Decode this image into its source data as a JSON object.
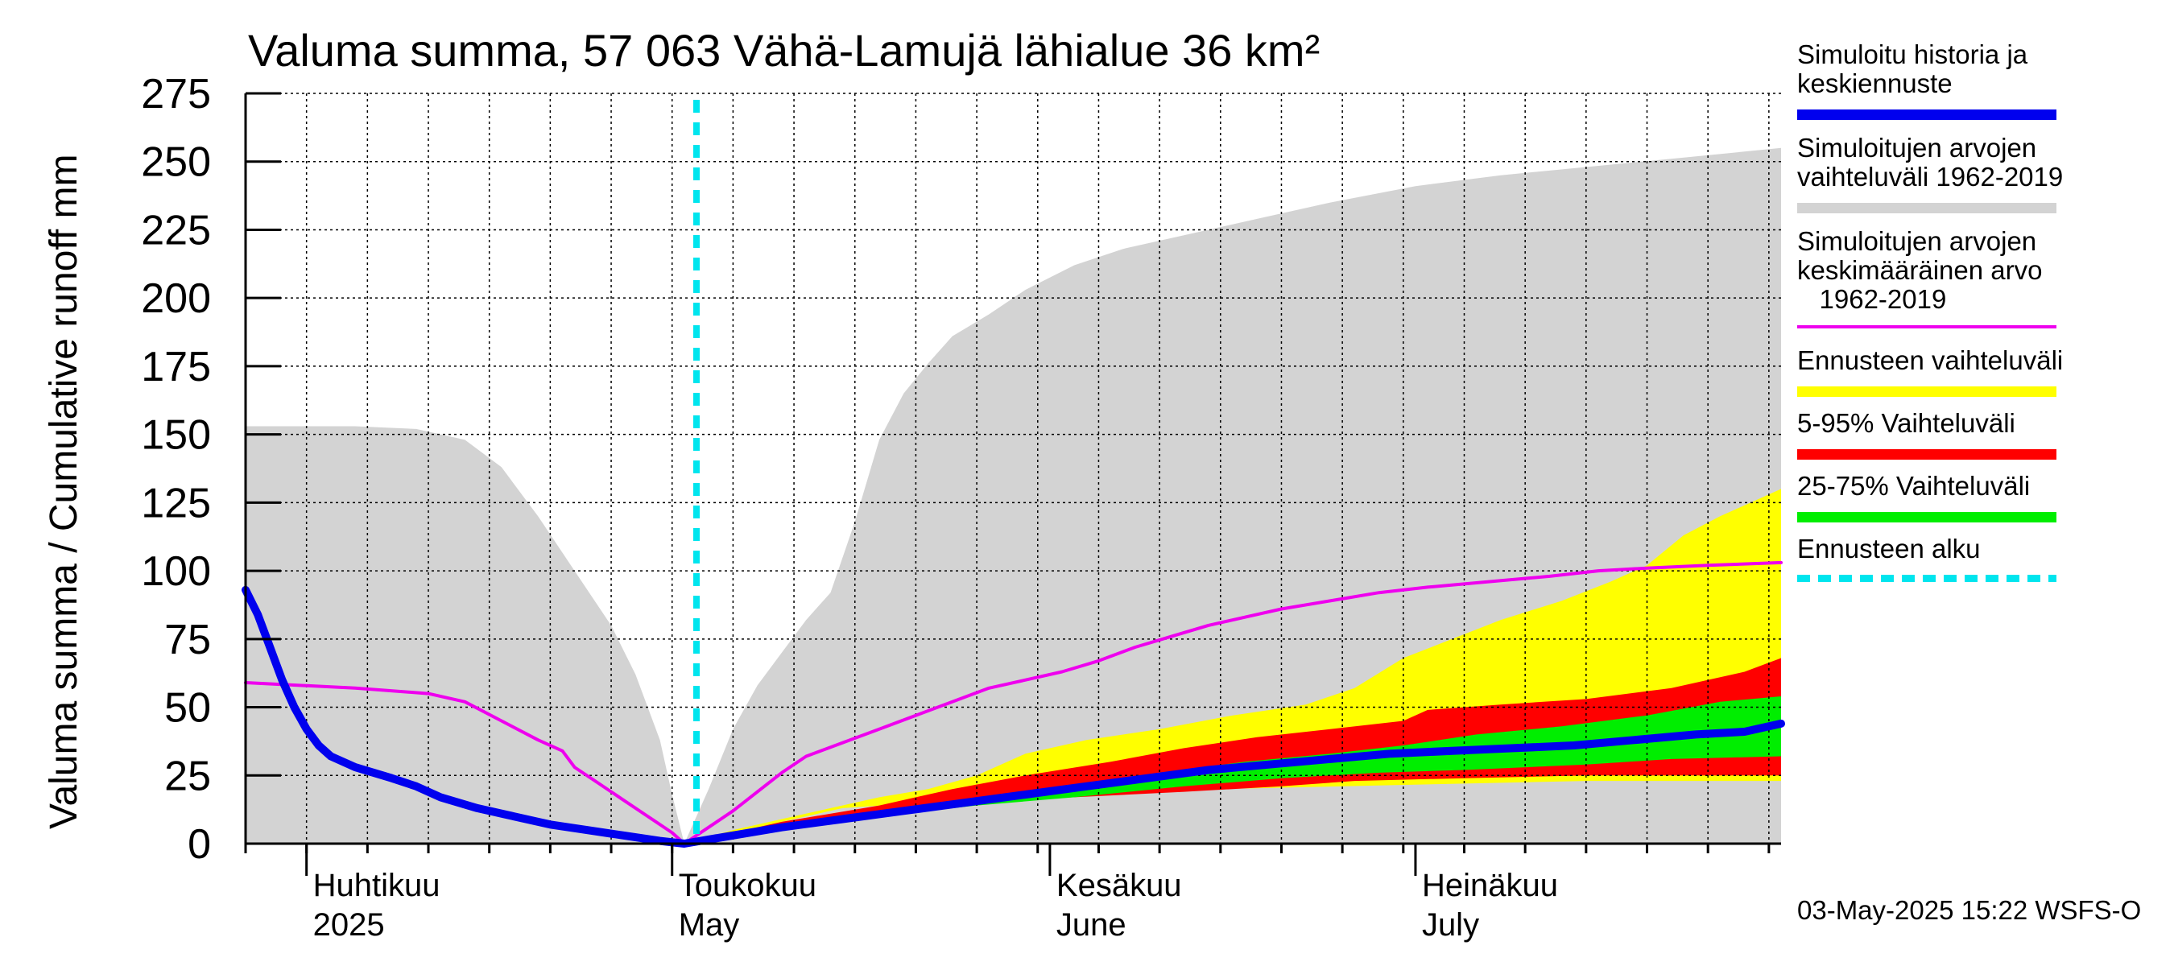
{
  "chart_data": {
    "type": "area",
    "title": "Valuma summa, 57 063 Vähä-Lamujä lähialue 36 km²",
    "ylabel": "Valuma summa / Cumulative runoff    mm",
    "ylim": [
      0,
      275
    ],
    "yticks": [
      0,
      25,
      50,
      75,
      100,
      125,
      150,
      175,
      200,
      225,
      250,
      275
    ],
    "grid": true,
    "legend_position": "right",
    "x_start": "2025-03-27",
    "x_end": "2025-07-31",
    "forecast_start": "2025-05-03",
    "x_tick_labels": [
      {
        "date": "2025-04-01",
        "line1": "Huhtikuu",
        "line2": "2025"
      },
      {
        "date": "2025-05-01",
        "line1": "Toukokuu",
        "line2": "May"
      },
      {
        "date": "2025-06-01",
        "line1": "Kesäkuu",
        "line2": "June"
      },
      {
        "date": "2025-07-01",
        "line1": "Heinäkuu",
        "line2": "July"
      }
    ],
    "series": [
      {
        "name": "Simuloitujen arvojen vaihteluväli 1962-2019",
        "kind": "band",
        "color": "#d3d3d3",
        "upper": [
          [
            "2025-03-27",
            153
          ],
          [
            "2025-04-05",
            153
          ],
          [
            "2025-04-10",
            152
          ],
          [
            "2025-04-14",
            148
          ],
          [
            "2025-04-17",
            138
          ],
          [
            "2025-04-20",
            120
          ],
          [
            "2025-04-23",
            100
          ],
          [
            "2025-04-26",
            80
          ],
          [
            "2025-04-28",
            62
          ],
          [
            "2025-04-30",
            38
          ],
          [
            "2025-05-01",
            18
          ],
          [
            "2025-05-02",
            0
          ],
          [
            "2025-05-04",
            20
          ],
          [
            "2025-05-06",
            42
          ],
          [
            "2025-05-08",
            58
          ],
          [
            "2025-05-10",
            70
          ],
          [
            "2025-05-12",
            82
          ],
          [
            "2025-05-14",
            92
          ],
          [
            "2025-05-16",
            118
          ],
          [
            "2025-05-18",
            148
          ],
          [
            "2025-05-20",
            165
          ],
          [
            "2025-05-22",
            176
          ],
          [
            "2025-05-24",
            186
          ],
          [
            "2025-05-27",
            194
          ],
          [
            "2025-05-30",
            203
          ],
          [
            "2025-06-03",
            212
          ],
          [
            "2025-06-07",
            218
          ],
          [
            "2025-06-12",
            223
          ],
          [
            "2025-06-18",
            229
          ],
          [
            "2025-06-24",
            235
          ],
          [
            "2025-07-01",
            241
          ],
          [
            "2025-07-08",
            245
          ],
          [
            "2025-07-15",
            248
          ],
          [
            "2025-07-22",
            251
          ],
          [
            "2025-07-31",
            255
          ]
        ],
        "lower": [
          [
            "2025-03-27",
            0
          ],
          [
            "2025-07-31",
            0
          ]
        ]
      },
      {
        "name": "Ennusteen vaihteluväli",
        "kind": "band",
        "color": "#ffff00",
        "upper": [
          [
            "2025-05-02",
            0
          ],
          [
            "2025-05-06",
            5
          ],
          [
            "2025-05-10",
            9
          ],
          [
            "2025-05-14",
            13
          ],
          [
            "2025-05-18",
            17
          ],
          [
            "2025-05-22",
            20
          ],
          [
            "2025-05-26",
            25
          ],
          [
            "2025-05-30",
            33
          ],
          [
            "2025-06-04",
            38
          ],
          [
            "2025-06-10",
            42
          ],
          [
            "2025-06-16",
            47
          ],
          [
            "2025-06-22",
            51
          ],
          [
            "2025-06-26",
            57
          ],
          [
            "2025-06-30",
            68
          ],
          [
            "2025-07-04",
            75
          ],
          [
            "2025-07-08",
            82
          ],
          [
            "2025-07-13",
            89
          ],
          [
            "2025-07-17",
            96
          ],
          [
            "2025-07-20",
            102
          ],
          [
            "2025-07-23",
            113
          ],
          [
            "2025-07-26",
            120
          ],
          [
            "2025-07-31",
            130
          ]
        ],
        "lower": [
          [
            "2025-05-02",
            0
          ],
          [
            "2025-05-15",
            13
          ],
          [
            "2025-05-25",
            16
          ],
          [
            "2025-06-05",
            18
          ],
          [
            "2025-06-15",
            20
          ],
          [
            "2025-06-25",
            21
          ],
          [
            "2025-07-05",
            22
          ],
          [
            "2025-07-15",
            23
          ],
          [
            "2025-07-31",
            23
          ]
        ]
      },
      {
        "name": "5-95% Vaihteluväli",
        "kind": "band",
        "color": "#ff0000",
        "upper": [
          [
            "2025-05-02",
            0
          ],
          [
            "2025-05-10",
            8
          ],
          [
            "2025-05-18",
            14
          ],
          [
            "2025-05-24",
            20
          ],
          [
            "2025-05-30",
            25
          ],
          [
            "2025-06-06",
            30
          ],
          [
            "2025-06-12",
            35
          ],
          [
            "2025-06-18",
            39
          ],
          [
            "2025-06-24",
            42
          ],
          [
            "2025-06-30",
            45
          ],
          [
            "2025-07-02",
            49
          ],
          [
            "2025-07-08",
            51
          ],
          [
            "2025-07-15",
            53
          ],
          [
            "2025-07-22",
            57
          ],
          [
            "2025-07-28",
            63
          ],
          [
            "2025-07-31",
            68
          ]
        ],
        "lower": [
          [
            "2025-05-02",
            0
          ],
          [
            "2025-05-10",
            7
          ],
          [
            "2025-05-18",
            12
          ],
          [
            "2025-05-26",
            15
          ],
          [
            "2025-06-03",
            17
          ],
          [
            "2025-06-12",
            19
          ],
          [
            "2025-06-20",
            21
          ],
          [
            "2025-06-26",
            23
          ],
          [
            "2025-07-05",
            24
          ],
          [
            "2025-07-15",
            25
          ],
          [
            "2025-07-31",
            25
          ]
        ]
      },
      {
        "name": "25-75% Vaihteluväli",
        "kind": "band",
        "color": "#00ee00",
        "upper": [
          [
            "2025-05-02",
            0
          ],
          [
            "2025-05-10",
            7
          ],
          [
            "2025-05-18",
            12
          ],
          [
            "2025-05-26",
            17
          ],
          [
            "2025-06-03",
            21
          ],
          [
            "2025-06-10",
            26
          ],
          [
            "2025-06-17",
            30
          ],
          [
            "2025-06-24",
            33
          ],
          [
            "2025-06-30",
            36
          ],
          [
            "2025-07-06",
            40
          ],
          [
            "2025-07-13",
            43
          ],
          [
            "2025-07-20",
            47
          ],
          [
            "2025-07-26",
            52
          ],
          [
            "2025-07-31",
            54
          ]
        ],
        "lower": [
          [
            "2025-05-02",
            0
          ],
          [
            "2025-05-10",
            6
          ],
          [
            "2025-05-18",
            10
          ],
          [
            "2025-05-26",
            14
          ],
          [
            "2025-06-03",
            17
          ],
          [
            "2025-06-12",
            21
          ],
          [
            "2025-06-20",
            24
          ],
          [
            "2025-06-28",
            26
          ],
          [
            "2025-07-05",
            27
          ],
          [
            "2025-07-15",
            29
          ],
          [
            "2025-07-22",
            31
          ],
          [
            "2025-07-31",
            32
          ]
        ]
      },
      {
        "name": "Simuloitujen arvojen keskimääräinen arvo 1962-2019",
        "kind": "line",
        "color": "#ee00ee",
        "points": [
          [
            "2025-03-27",
            59
          ],
          [
            "2025-04-05",
            57
          ],
          [
            "2025-04-11",
            55
          ],
          [
            "2025-04-14",
            52
          ],
          [
            "2025-04-17",
            45
          ],
          [
            "2025-04-20",
            38
          ],
          [
            "2025-04-22",
            34
          ],
          [
            "2025-04-23",
            28
          ],
          [
            "2025-04-25",
            22
          ],
          [
            "2025-04-27",
            16
          ],
          [
            "2025-04-29",
            10
          ],
          [
            "2025-05-01",
            4
          ],
          [
            "2025-05-02",
            0
          ],
          [
            "2025-05-04",
            6
          ],
          [
            "2025-05-06",
            12
          ],
          [
            "2025-05-08",
            19
          ],
          [
            "2025-05-10",
            26
          ],
          [
            "2025-05-12",
            32
          ],
          [
            "2025-05-15",
            37
          ],
          [
            "2025-05-18",
            42
          ],
          [
            "2025-05-21",
            47
          ],
          [
            "2025-05-24",
            52
          ],
          [
            "2025-05-27",
            57
          ],
          [
            "2025-05-30",
            60
          ],
          [
            "2025-06-02",
            63
          ],
          [
            "2025-06-05",
            67
          ],
          [
            "2025-06-08",
            72
          ],
          [
            "2025-06-11",
            76
          ],
          [
            "2025-06-14",
            80
          ],
          [
            "2025-06-17",
            83
          ],
          [
            "2025-06-20",
            86
          ],
          [
            "2025-06-24",
            89
          ],
          [
            "2025-06-28",
            92
          ],
          [
            "2025-07-02",
            94
          ],
          [
            "2025-07-07",
            96
          ],
          [
            "2025-07-12",
            98
          ],
          [
            "2025-07-16",
            100
          ],
          [
            "2025-07-20",
            101
          ],
          [
            "2025-07-25",
            102
          ],
          [
            "2025-07-31",
            103
          ]
        ]
      },
      {
        "name": "Simuloitu historia ja keskiennuste",
        "kind": "line",
        "color": "#0000ee",
        "points": [
          [
            "2025-03-27",
            93
          ],
          [
            "2025-03-28",
            84
          ],
          [
            "2025-03-29",
            72
          ],
          [
            "2025-03-30",
            60
          ],
          [
            "2025-03-31",
            50
          ],
          [
            "2025-04-01",
            42
          ],
          [
            "2025-04-02",
            36
          ],
          [
            "2025-04-03",
            32
          ],
          [
            "2025-04-05",
            28
          ],
          [
            "2025-04-08",
            24
          ],
          [
            "2025-04-10",
            21
          ],
          [
            "2025-04-12",
            17
          ],
          [
            "2025-04-15",
            13
          ],
          [
            "2025-04-18",
            10
          ],
          [
            "2025-04-21",
            7
          ],
          [
            "2025-04-24",
            5
          ],
          [
            "2025-04-27",
            3
          ],
          [
            "2025-04-30",
            1
          ],
          [
            "2025-05-02",
            0
          ],
          [
            "2025-05-06",
            3
          ],
          [
            "2025-05-10",
            6
          ],
          [
            "2025-05-15",
            9
          ],
          [
            "2025-05-20",
            12
          ],
          [
            "2025-05-25",
            15
          ],
          [
            "2025-05-30",
            18
          ],
          [
            "2025-06-04",
            21
          ],
          [
            "2025-06-09",
            24
          ],
          [
            "2025-06-14",
            27
          ],
          [
            "2025-06-19",
            29
          ],
          [
            "2025-06-24",
            31
          ],
          [
            "2025-06-29",
            33
          ],
          [
            "2025-07-04",
            34
          ],
          [
            "2025-07-09",
            35
          ],
          [
            "2025-07-14",
            36
          ],
          [
            "2025-07-19",
            38
          ],
          [
            "2025-07-24",
            40
          ],
          [
            "2025-07-28",
            41
          ],
          [
            "2025-07-31",
            44
          ]
        ]
      }
    ]
  },
  "legend": {
    "items": [
      {
        "key": "sim-history",
        "text": "Simuloitu historia ja\nkeskiennuste",
        "color": "#0000ee",
        "style": "solid"
      },
      {
        "key": "sim-range",
        "text": "Simuloitujen arvojen\nvaihteluväli 1962-2019",
        "color": "#d3d3d3",
        "style": "solid"
      },
      {
        "key": "sim-mean",
        "text": "Simuloitujen arvojen\nkeskimääräinen arvo\n   1962-2019",
        "color": "#ee00ee",
        "style": "thin"
      },
      {
        "key": "forecast-range",
        "text": "Ennusteen vaihteluväli",
        "color": "#ffff00",
        "style": "solid"
      },
      {
        "key": "range-5-95",
        "text": "5-95% Vaihteluväli",
        "color": "#ff0000",
        "style": "solid"
      },
      {
        "key": "range-25-75",
        "text": "25-75% Vaihteluväli",
        "color": "#00ee00",
        "style": "solid"
      },
      {
        "key": "forecast-start",
        "text": "Ennusteen alku",
        "color": "#00e5ee",
        "style": "dashed"
      }
    ]
  },
  "footer": {
    "timestamp": "03-May-2025 15:22 WSFS-O"
  }
}
